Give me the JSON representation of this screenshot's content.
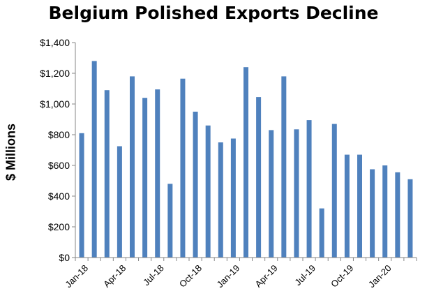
{
  "chart_data": {
    "type": "bar",
    "title": "Belgium Polished Exports Decline",
    "xlabel": "",
    "ylabel": "$ Millions",
    "ylim": [
      0,
      1400
    ],
    "yticks": [
      "$0",
      "$200",
      "$400",
      "$600",
      "$800",
      "$1,000",
      "$1,200",
      "$1,400"
    ],
    "categories": [
      "Jan-18",
      "Feb-18",
      "Mar-18",
      "Apr-18",
      "May-18",
      "Jun-18",
      "Jul-18",
      "Aug-18",
      "Sep-18",
      "Oct-18",
      "Nov-18",
      "Dec-18",
      "Jan-19",
      "Feb-19",
      "Mar-19",
      "Apr-19",
      "May-19",
      "Jun-19",
      "Jul-19",
      "Aug-19",
      "Sep-19",
      "Oct-19",
      "Nov-19",
      "Dec-19",
      "Jan-20",
      "Feb-20",
      "Mar-20"
    ],
    "values": [
      810,
      1280,
      1090,
      725,
      1180,
      1040,
      1095,
      480,
      1165,
      950,
      860,
      750,
      775,
      1240,
      1045,
      830,
      1180,
      835,
      895,
      320,
      870,
      670,
      670,
      575,
      600,
      555,
      510
    ],
    "xtick_labels": [
      "Jan-18",
      "Apr-18",
      "Jul-18",
      "Oct-18",
      "Jan-19",
      "Apr-19",
      "Jul-19",
      "Oct-19",
      "Jan-20"
    ],
    "bar_color": "#4F81BD",
    "grid": false,
    "legend": "none"
  }
}
